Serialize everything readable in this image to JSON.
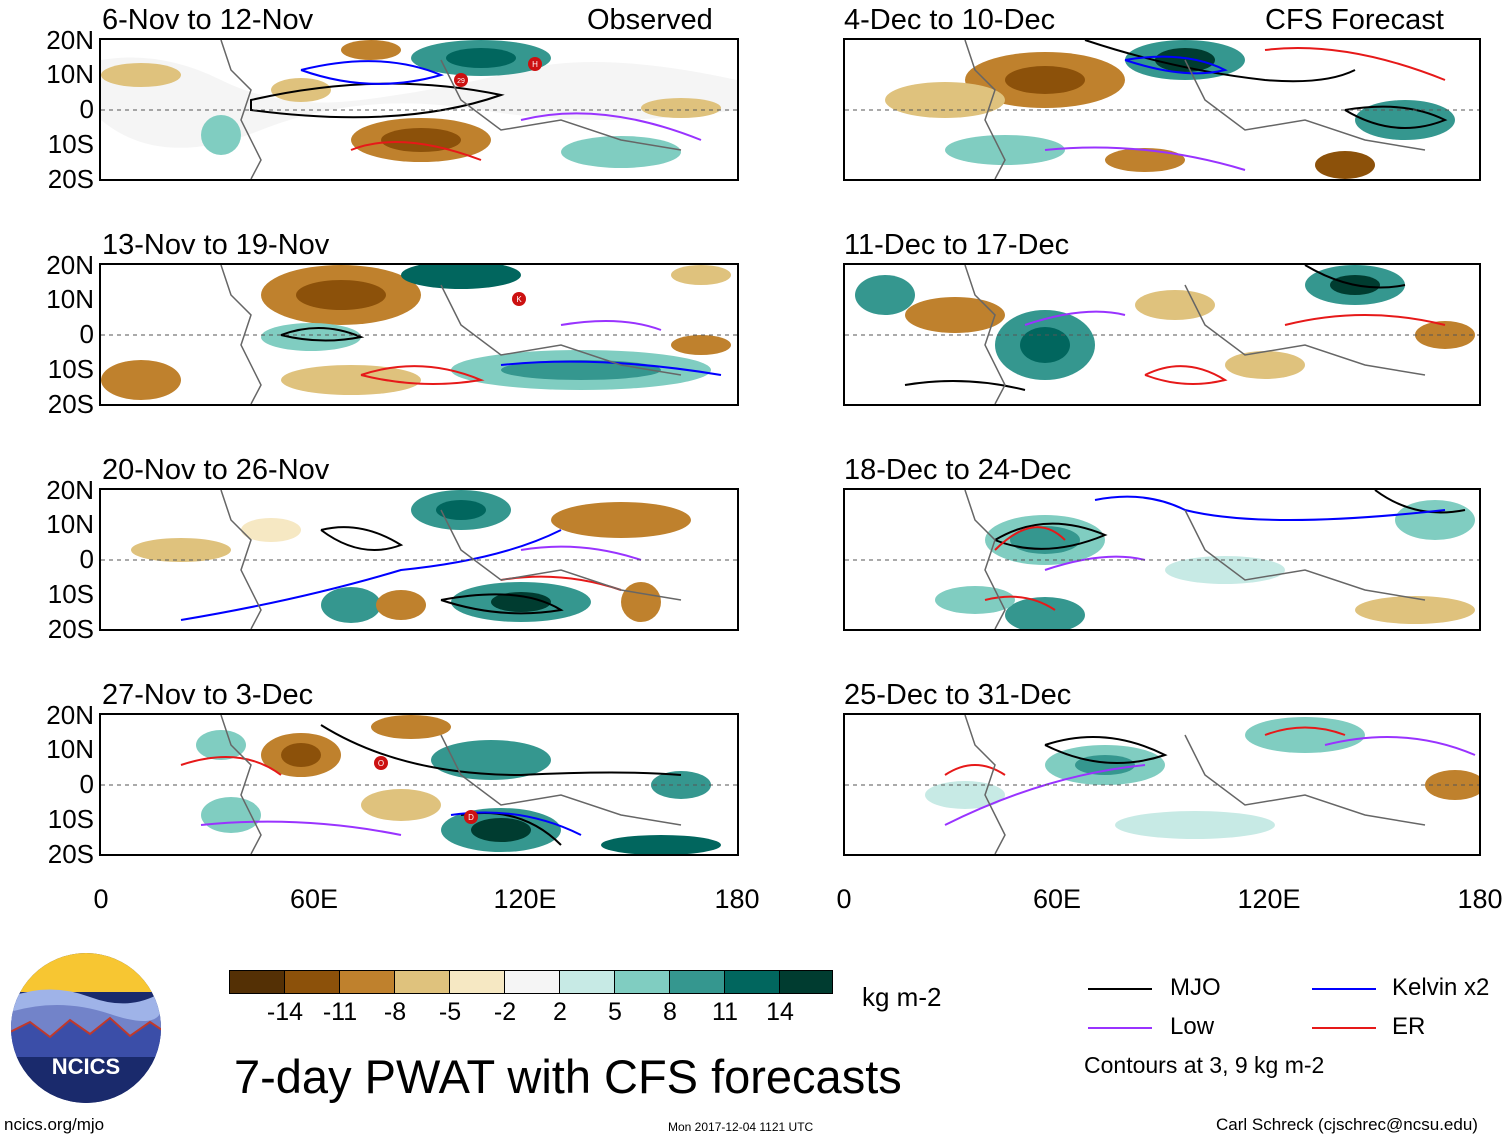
{
  "titles": {
    "observed": "Observed",
    "forecast": "CFS Forecast",
    "main": "7-day PWAT with CFS forecasts"
  },
  "panels": {
    "left": [
      {
        "period": "6-Nov to 12-Nov",
        "storms": [
          "29",
          "H"
        ]
      },
      {
        "period": "13-Nov to 19-Nov",
        "storms": [
          "K"
        ]
      },
      {
        "period": "20-Nov to 26-Nov",
        "storms": []
      },
      {
        "period": "27-Nov to 3-Dec",
        "storms": [
          "O",
          "D"
        ]
      }
    ],
    "right": [
      {
        "period": "4-Dec to 10-Dec"
      },
      {
        "period": "11-Dec to 17-Dec"
      },
      {
        "period": "18-Dec to 24-Dec"
      },
      {
        "period": "25-Dec to 31-Dec"
      }
    ]
  },
  "axes": {
    "lat_labels": [
      "20N",
      "10N",
      "0",
      "10S",
      "20S"
    ],
    "lon_labels": [
      "0",
      "60E",
      "120E",
      "180"
    ],
    "lat_range": [
      -20,
      20
    ],
    "lon_range": [
      0,
      180
    ]
  },
  "colorbar": {
    "units": "kg m-2",
    "labels": [
      "-14",
      "-11",
      "-8",
      "-5",
      "-2",
      "2",
      "5",
      "8",
      "11",
      "14"
    ],
    "colors": [
      "#543005",
      "#8c510a",
      "#bf812d",
      "#dfc27d",
      "#f6e8c3",
      "#f5f5f5",
      "#c7eae5",
      "#80cdc1",
      "#35978f",
      "#01665e",
      "#003c30"
    ]
  },
  "legend": {
    "items": [
      {
        "label": "MJO",
        "color": "#000000"
      },
      {
        "label": "Kelvin x2",
        "color": "#0000ff"
      },
      {
        "label": "Low",
        "color": "#9933ff"
      },
      {
        "label": "ER",
        "color": "#e61919"
      }
    ],
    "note": "Contours at 3, 9 kg m-2"
  },
  "footer": {
    "site": "ncics.org/mjo",
    "timestamp": "Mon 2017-12-04 1121 UTC",
    "credit": "Carl Schreck (cjschrec@ncsu.edu)"
  },
  "logo": {
    "text": "NCICS"
  }
}
